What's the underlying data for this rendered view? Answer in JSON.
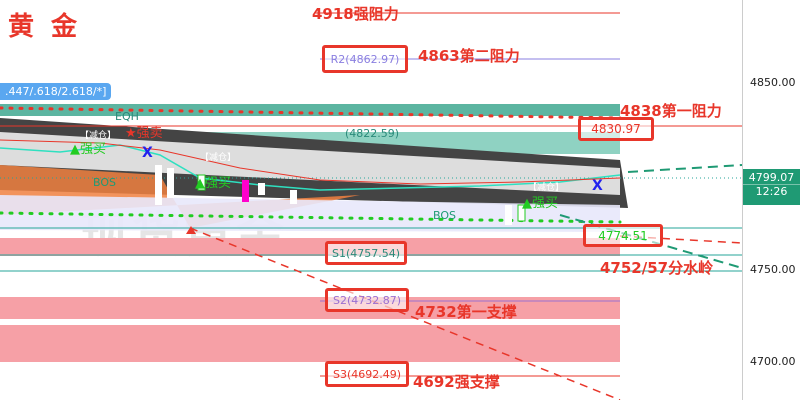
{
  "header": {
    "title": "黄 金"
  },
  "fib_badge": ".447/.618/2.618/*]",
  "watermark": "现货黄金",
  "annotations": {
    "r_strong": "4918强阻力",
    "r2": "4863第二阻力",
    "r1": "4838第一阻力",
    "pivot": "4752/57分水岭",
    "s1": "4732第一支撑",
    "s_strong": "4692强支撑"
  },
  "levels": {
    "r2": "R2(4862.97)",
    "r1_box": "4830.97",
    "r_faded": "(4822.59)",
    "mid_box": "4774.51",
    "s1": "S1(4757.54)",
    "s2": "S2(4732.87)",
    "s3": "S3(4692.49)"
  },
  "signals": {
    "reduce": "【减仓】",
    "strong_buy": "强买",
    "strong_sell": "强卖",
    "bos": "BOS",
    "eqh": "EQH"
  },
  "axis": {
    "ticks": [
      "4850.00",
      "4750.00",
      "4700.00"
    ],
    "price": "4799.07",
    "countdown": "12:26"
  },
  "colors": {
    "up": "#26a69a",
    "down": "#e8362a",
    "price_badge": "#1f9a74",
    "accent": "#e8362a"
  },
  "chart_data": {
    "type": "candlestick",
    "title": "黄 金",
    "y_ticks": [
      4850,
      4750,
      4700
    ],
    "last_price": 4799.07,
    "levels": [
      {
        "label": "4918强阻力",
        "value": 4918
      },
      {
        "label": "R2",
        "value": 4862.97
      },
      {
        "label": "4838第一阻力",
        "value": 4838
      },
      {
        "label": "R1",
        "value": 4830.97
      },
      {
        "label": "",
        "value": 4774.51
      },
      {
        "label": "S1",
        "value": 4757.54
      },
      {
        "label": "S2",
        "value": 4732.87
      },
      {
        "label": "S3",
        "value": 4692.49
      }
    ]
  }
}
